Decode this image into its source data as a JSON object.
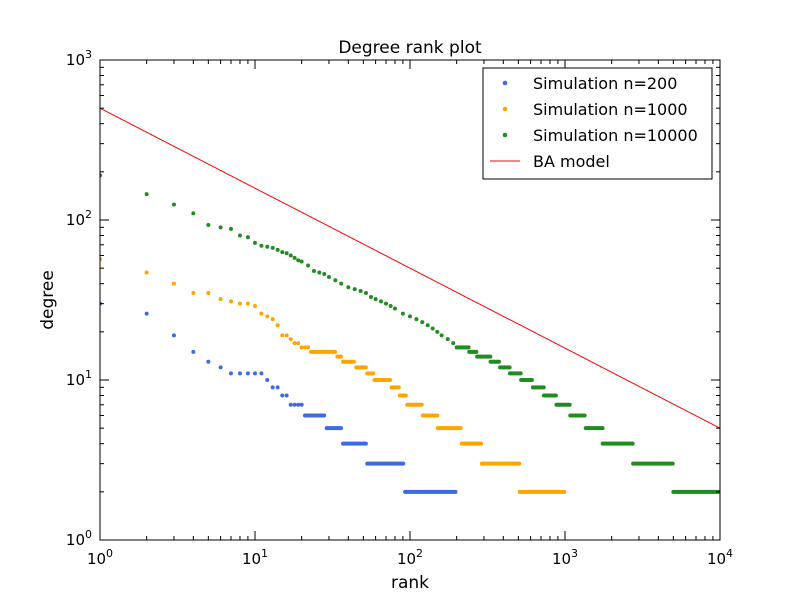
{
  "chart_data": {
    "type": "scatter",
    "title": "Degree rank plot",
    "xlabel": "rank",
    "ylabel": "degree",
    "x_scale": "log",
    "y_scale": "log",
    "xlim": [
      1,
      10000
    ],
    "ylim": [
      1,
      1000
    ],
    "x_ticks": [
      {
        "value": 1,
        "base": "10",
        "exp": "0"
      },
      {
        "value": 10,
        "base": "10",
        "exp": "1"
      },
      {
        "value": 100,
        "base": "10",
        "exp": "2"
      },
      {
        "value": 1000,
        "base": "10",
        "exp": "3"
      },
      {
        "value": 10000,
        "base": "10",
        "exp": "4"
      }
    ],
    "y_ticks": [
      {
        "value": 1,
        "base": "10",
        "exp": "0"
      },
      {
        "value": 10,
        "base": "10",
        "exp": "1"
      },
      {
        "value": 100,
        "base": "10",
        "exp": "2"
      },
      {
        "value": 1000,
        "base": "10",
        "exp": "3"
      }
    ],
    "legend_position": "top-right",
    "series": [
      {
        "name": "Simulation n=200",
        "kind": "points",
        "color": "#4169e1",
        "n": 200,
        "points": [
          [
            1,
            30
          ],
          [
            2,
            26
          ],
          [
            3,
            19
          ],
          [
            4,
            15
          ],
          [
            5,
            13
          ],
          [
            6,
            12
          ],
          [
            7,
            11
          ],
          [
            8,
            11
          ],
          [
            9,
            11
          ],
          [
            10,
            11
          ],
          [
            11,
            11
          ],
          [
            12,
            10
          ],
          [
            13,
            9
          ],
          [
            14,
            9
          ],
          [
            15,
            8
          ],
          [
            16,
            8
          ],
          [
            17,
            7
          ],
          [
            18,
            7
          ],
          [
            19,
            7
          ],
          [
            20,
            7
          ]
        ],
        "plateaus": [
          {
            "degree": 6,
            "from": 21,
            "to": 28
          },
          {
            "degree": 5,
            "from": 29,
            "to": 36
          },
          {
            "degree": 4,
            "from": 37,
            "to": 52
          },
          {
            "degree": 3,
            "from": 53,
            "to": 92
          },
          {
            "degree": 2,
            "from": 93,
            "to": 200
          }
        ]
      },
      {
        "name": "Simulation n=1000",
        "kind": "points",
        "color": "#ffa500",
        "n": 1000,
        "points": [
          [
            1,
            57
          ],
          [
            2,
            47
          ],
          [
            3,
            40
          ],
          [
            4,
            35
          ],
          [
            5,
            35
          ],
          [
            6,
            32
          ],
          [
            7,
            31
          ],
          [
            8,
            30
          ],
          [
            9,
            30
          ],
          [
            10,
            29
          ],
          [
            11,
            26
          ],
          [
            12,
            25
          ],
          [
            13,
            24
          ],
          [
            14,
            22
          ],
          [
            15,
            19
          ],
          [
            16,
            19
          ],
          [
            17,
            18
          ],
          [
            18,
            17
          ],
          [
            19,
            17
          ],
          [
            20,
            16
          ],
          [
            21,
            16
          ],
          [
            22,
            16
          ]
        ],
        "plateaus": [
          {
            "degree": 15,
            "from": 23,
            "to": 33
          },
          {
            "degree": 14,
            "from": 34,
            "to": 36
          },
          {
            "degree": 13,
            "from": 37,
            "to": 44
          },
          {
            "degree": 12,
            "from": 45,
            "to": 52
          },
          {
            "degree": 11,
            "from": 53,
            "to": 58
          },
          {
            "degree": 10,
            "from": 59,
            "to": 75
          },
          {
            "degree": 9,
            "from": 76,
            "to": 85
          },
          {
            "degree": 8,
            "from": 86,
            "to": 95
          },
          {
            "degree": 7,
            "from": 96,
            "to": 120
          },
          {
            "degree": 6,
            "from": 121,
            "to": 150
          },
          {
            "degree": 5,
            "from": 151,
            "to": 215
          },
          {
            "degree": 4,
            "from": 216,
            "to": 290
          },
          {
            "degree": 3,
            "from": 291,
            "to": 510
          },
          {
            "degree": 2,
            "from": 511,
            "to": 1000
          }
        ]
      },
      {
        "name": "Simulation n=10000",
        "kind": "points",
        "color": "#228b22",
        "n": 10000,
        "points": [
          [
            1,
            190
          ],
          [
            2,
            145
          ],
          [
            3,
            125
          ],
          [
            4,
            110
          ],
          [
            5,
            93
          ],
          [
            6,
            90
          ],
          [
            7,
            88
          ],
          [
            8,
            80
          ],
          [
            9,
            78
          ],
          [
            10,
            72
          ],
          [
            11,
            69
          ],
          [
            12,
            68
          ],
          [
            13,
            67
          ],
          [
            14,
            65
          ],
          [
            15,
            63
          ],
          [
            16,
            62
          ],
          [
            17,
            60
          ],
          [
            18,
            58
          ],
          [
            19,
            56
          ],
          [
            20,
            55
          ],
          [
            22,
            52
          ],
          [
            24,
            48
          ],
          [
            26,
            47
          ],
          [
            28,
            46
          ],
          [
            30,
            44
          ],
          [
            33,
            42
          ],
          [
            36,
            40
          ],
          [
            40,
            38
          ],
          [
            44,
            37
          ],
          [
            48,
            36
          ],
          [
            52,
            35
          ],
          [
            56,
            33
          ],
          [
            60,
            32
          ],
          [
            65,
            31
          ],
          [
            70,
            30
          ],
          [
            75,
            29
          ],
          [
            80,
            28
          ],
          [
            90,
            26
          ],
          [
            100,
            25
          ],
          [
            110,
            24
          ],
          [
            120,
            23
          ],
          [
            130,
            22
          ],
          [
            140,
            21
          ],
          [
            150,
            20
          ],
          [
            160,
            19
          ],
          [
            175,
            18
          ],
          [
            190,
            17
          ]
        ],
        "plateaus": [
          {
            "degree": 16,
            "from": 200,
            "to": 240
          },
          {
            "degree": 15,
            "from": 241,
            "to": 270
          },
          {
            "degree": 14,
            "from": 271,
            "to": 330
          },
          {
            "degree": 13,
            "from": 331,
            "to": 380
          },
          {
            "degree": 12,
            "from": 381,
            "to": 440
          },
          {
            "degree": 11,
            "from": 441,
            "to": 520
          },
          {
            "degree": 10,
            "from": 521,
            "to": 620
          },
          {
            "degree": 9,
            "from": 621,
            "to": 730
          },
          {
            "degree": 8,
            "from": 731,
            "to": 880
          },
          {
            "degree": 7,
            "from": 881,
            "to": 1080
          },
          {
            "degree": 6,
            "from": 1081,
            "to": 1360
          },
          {
            "degree": 5,
            "from": 1361,
            "to": 1750
          },
          {
            "degree": 4,
            "from": 1751,
            "to": 2750
          },
          {
            "degree": 3,
            "from": 2751,
            "to": 5000
          },
          {
            "degree": 2,
            "from": 5001,
            "to": 10000
          }
        ]
      },
      {
        "name": "BA model",
        "kind": "line",
        "color": "#ff0000",
        "x": [
          1,
          10000
        ],
        "y": [
          500,
          5
        ]
      }
    ]
  }
}
